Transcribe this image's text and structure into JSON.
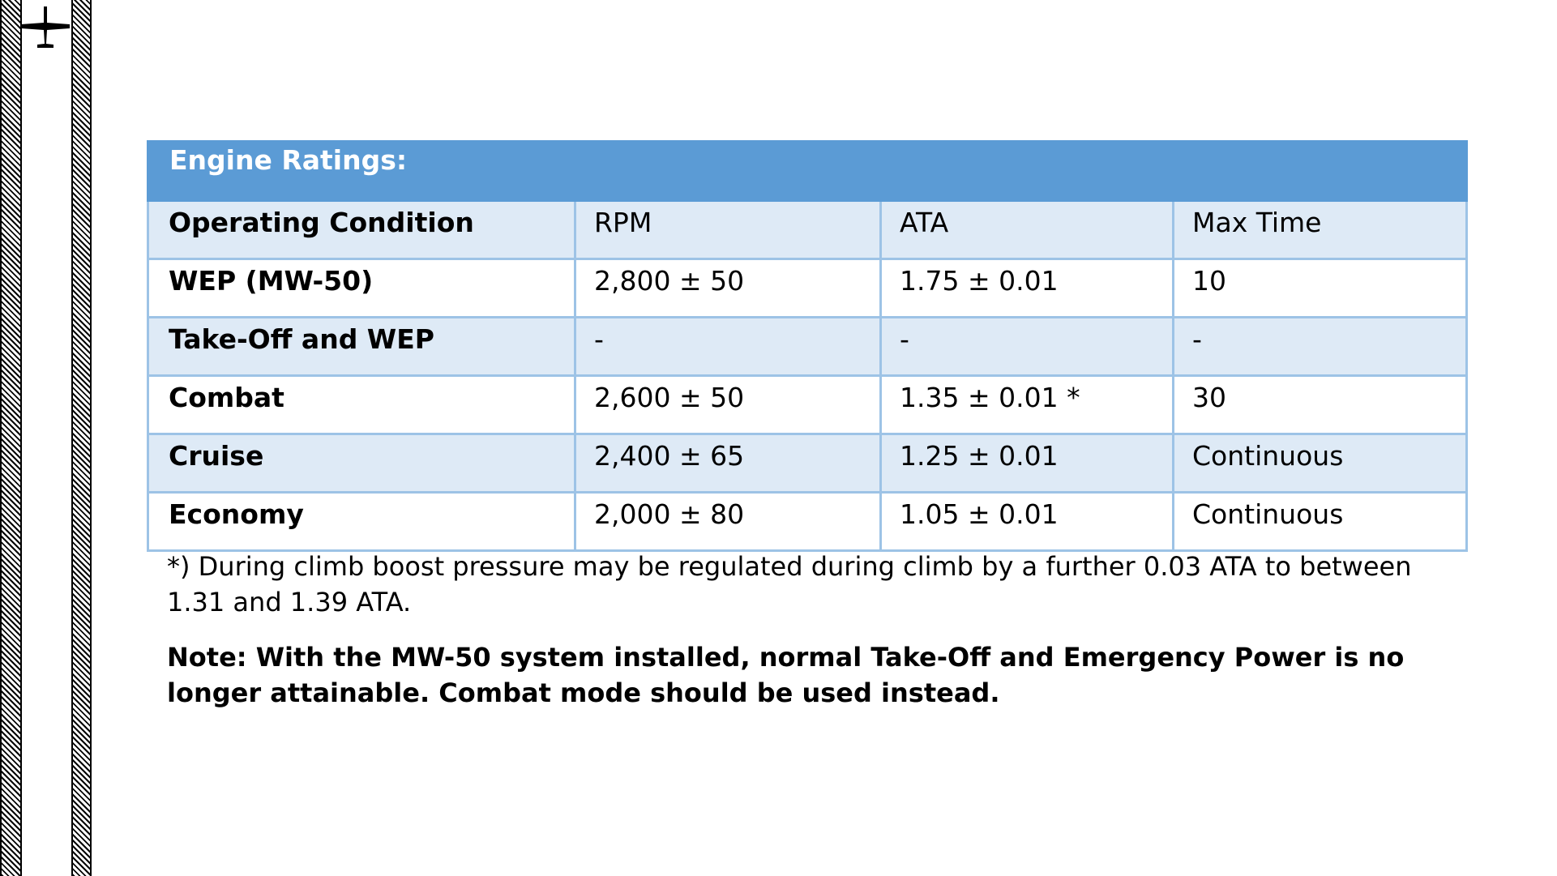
{
  "table": {
    "title": "Engine Ratings:",
    "header": [
      "Operating Condition",
      "RPM",
      "ATA",
      "Max Time"
    ],
    "rows": [
      [
        "WEP (MW-50)",
        "2,800 ± 50",
        "1.75 ± 0.01",
        "10"
      ],
      [
        "Take-Off and WEP",
        "-",
        "-",
        "-"
      ],
      [
        "Combat",
        "2,600 ± 50",
        "1.35 ± 0.01 *",
        "30"
      ],
      [
        "Cruise",
        "2,400 ± 65",
        "1.25 ± 0.01",
        "Continuous"
      ],
      [
        "Economy",
        "2,000 ± 80",
        "1.05 ± 0.01",
        "Continuous"
      ]
    ],
    "colors": {
      "title_bg": "#5b9bd5",
      "shade_bg": "#deeaf6",
      "border": "#9dc3e6"
    }
  },
  "footnote": "*) During climb boost pressure may be regulated during climb by a further 0.03 ATA to between 1.31 and 1.39 ATA.",
  "note": "Note: With the MW-50 system installed, normal Take-Off and Emergency Power is no longer attainable. Combat mode should be used instead.",
  "icons": {
    "margin_icon": "airplane-icon"
  }
}
